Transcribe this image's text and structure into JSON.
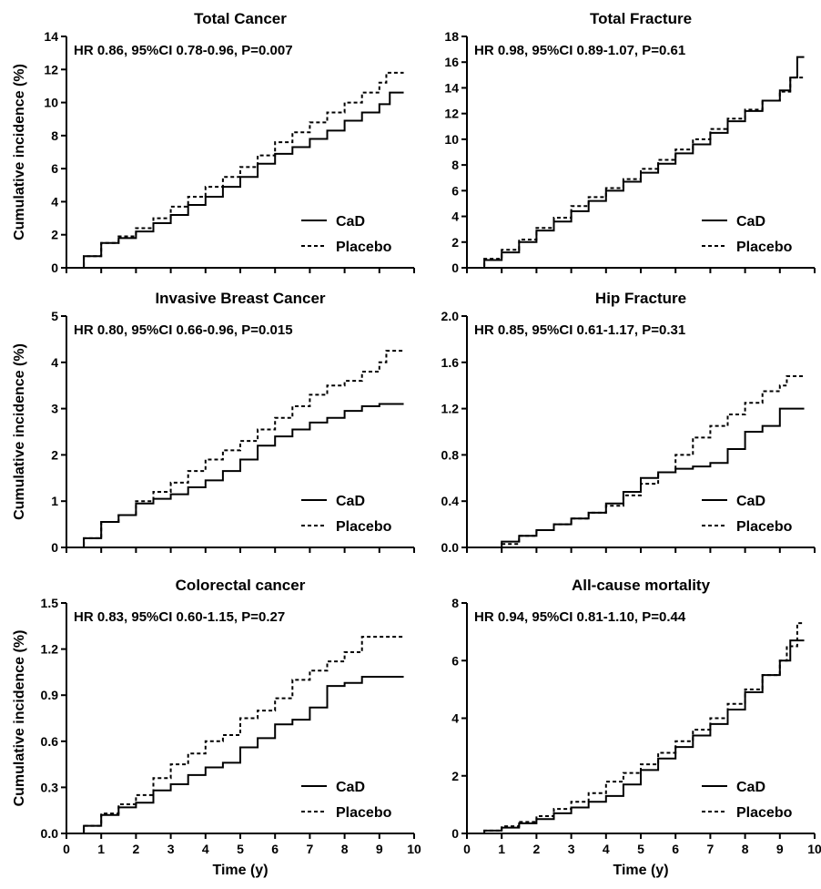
{
  "figure": {
    "xlabel": "Time (y)",
    "ylabel": "Cumulative incidence (%)"
  },
  "legend": {
    "items": [
      {
        "label": "CaD",
        "style": "solid",
        "color": "#000000"
      },
      {
        "label": "Placebo",
        "style": "dashed",
        "color": "#000000"
      }
    ],
    "placement": "bottom-right"
  },
  "chart_data": [
    {
      "type": "line",
      "title": "Total Cancer",
      "annotation": "HR 0.86, 95%CI 0.78-0.96, P=0.007",
      "xlim": [
        0,
        10
      ],
      "ylim": [
        0,
        14
      ],
      "xticks": [
        "0",
        "1",
        "2",
        "3",
        "4",
        "5",
        "6",
        "7",
        "8",
        "9",
        "10"
      ],
      "yticks": [
        "0",
        "2",
        "4",
        "6",
        "8",
        "10",
        "12",
        "14"
      ],
      "x_tick_labels_shown": false,
      "show_xlabel": false,
      "show_ylabel": true,
      "series": [
        {
          "name": "CaD",
          "style": "solid",
          "x": [
            0,
            0.5,
            1,
            1.5,
            2,
            2.5,
            3,
            3.5,
            4,
            4.5,
            5,
            5.5,
            6,
            6.5,
            7,
            7.5,
            8,
            8.5,
            9,
            9.3,
            9.7
          ],
          "y": [
            0,
            0.7,
            1.5,
            1.8,
            2.2,
            2.7,
            3.2,
            3.8,
            4.3,
            4.9,
            5.5,
            6.3,
            6.9,
            7.3,
            7.8,
            8.3,
            8.9,
            9.4,
            9.9,
            10.6,
            10.6
          ]
        },
        {
          "name": "Placebo",
          "style": "dashed",
          "x": [
            0,
            0.5,
            1,
            1.5,
            2,
            2.5,
            3,
            3.5,
            4,
            4.5,
            5,
            5.5,
            6,
            6.5,
            7,
            7.5,
            8,
            8.5,
            9,
            9.2,
            9.7
          ],
          "y": [
            0,
            0.7,
            1.5,
            1.9,
            2.4,
            3.0,
            3.7,
            4.3,
            4.9,
            5.5,
            6.1,
            6.8,
            7.6,
            8.2,
            8.8,
            9.4,
            10.0,
            10.6,
            11.2,
            11.8,
            11.8
          ]
        }
      ]
    },
    {
      "type": "line",
      "title": "Total Fracture",
      "annotation": "HR 0.98, 95%CI 0.89-1.07, P=0.61",
      "xlim": [
        0,
        10
      ],
      "ylim": [
        0,
        18
      ],
      "xticks": [
        "0",
        "1",
        "2",
        "3",
        "4",
        "5",
        "6",
        "7",
        "8",
        "9",
        "10"
      ],
      "yticks": [
        "0",
        "2",
        "4",
        "6",
        "8",
        "10",
        "12",
        "14",
        "16",
        "18"
      ],
      "x_tick_labels_shown": false,
      "show_xlabel": false,
      "show_ylabel": false,
      "series": [
        {
          "name": "CaD",
          "style": "solid",
          "x": [
            0,
            0.5,
            1,
            1.5,
            2,
            2.5,
            3,
            3.5,
            4,
            4.5,
            5,
            5.5,
            6,
            6.5,
            7,
            7.5,
            8,
            8.5,
            9,
            9.3,
            9.5,
            9.7
          ],
          "y": [
            0,
            0.6,
            1.2,
            2.0,
            2.9,
            3.6,
            4.4,
            5.2,
            6.0,
            6.7,
            7.4,
            8.1,
            8.9,
            9.6,
            10.5,
            11.4,
            12.2,
            13.0,
            13.8,
            14.8,
            16.4,
            16.4
          ]
        },
        {
          "name": "Placebo",
          "style": "dashed",
          "x": [
            0,
            0.5,
            1,
            1.5,
            2,
            2.5,
            3,
            3.5,
            4,
            4.5,
            5,
            5.5,
            6,
            6.5,
            7,
            7.5,
            8,
            8.5,
            9,
            9.3,
            9.7
          ],
          "y": [
            0,
            0.7,
            1.4,
            2.2,
            3.1,
            3.9,
            4.8,
            5.5,
            6.2,
            6.9,
            7.7,
            8.4,
            9.2,
            10.0,
            10.8,
            11.6,
            12.3,
            13.0,
            13.7,
            14.8,
            14.9
          ]
        }
      ]
    },
    {
      "type": "line",
      "title": "Invasive Breast Cancer",
      "annotation": "HR 0.80, 95%CI 0.66-0.96, P=0.015",
      "xlim": [
        0,
        10
      ],
      "ylim": [
        0,
        5
      ],
      "xticks": [
        "0",
        "1",
        "2",
        "3",
        "4",
        "5",
        "6",
        "7",
        "8",
        "9",
        "10"
      ],
      "yticks": [
        "0",
        "1",
        "2",
        "3",
        "4",
        "5"
      ],
      "x_tick_labels_shown": false,
      "show_xlabel": false,
      "show_ylabel": true,
      "series": [
        {
          "name": "CaD",
          "style": "solid",
          "x": [
            0,
            0.5,
            1,
            1.5,
            2,
            2.5,
            3,
            3.5,
            4,
            4.5,
            5,
            5.5,
            6,
            6.5,
            7,
            7.5,
            8,
            8.5,
            9,
            9.7
          ],
          "y": [
            0,
            0.2,
            0.55,
            0.7,
            0.95,
            1.05,
            1.15,
            1.3,
            1.45,
            1.65,
            1.9,
            2.2,
            2.4,
            2.55,
            2.7,
            2.8,
            2.95,
            3.05,
            3.1,
            3.1
          ]
        },
        {
          "name": "Placebo",
          "style": "dashed",
          "x": [
            0,
            0.5,
            1,
            1.5,
            2,
            2.5,
            3,
            3.5,
            4,
            4.5,
            5,
            5.5,
            6,
            6.5,
            7,
            7.5,
            8,
            8.5,
            9,
            9.2,
            9.7
          ],
          "y": [
            0,
            0.2,
            0.55,
            0.7,
            1.0,
            1.2,
            1.4,
            1.65,
            1.9,
            2.1,
            2.3,
            2.55,
            2.8,
            3.05,
            3.3,
            3.5,
            3.6,
            3.8,
            4.0,
            4.25,
            4.25
          ]
        }
      ]
    },
    {
      "type": "line",
      "title": "Hip Fracture",
      "annotation": "HR 0.85, 95%CI 0.61-1.17, P=0.31",
      "xlim": [
        0,
        10
      ],
      "ylim": [
        0,
        2.0
      ],
      "xticks": [
        "0",
        "1",
        "2",
        "3",
        "4",
        "5",
        "6",
        "7",
        "8",
        "9",
        "10"
      ],
      "yticks": [
        "0.0",
        "0.4",
        "0.8",
        "1.2",
        "1.6",
        "2.0"
      ],
      "x_tick_labels_shown": false,
      "show_xlabel": false,
      "show_ylabel": false,
      "series": [
        {
          "name": "CaD",
          "style": "solid",
          "x": [
            0,
            0.5,
            1,
            1.5,
            2,
            2.5,
            3,
            3.5,
            4,
            4.5,
            5,
            5.5,
            6,
            6.5,
            7,
            7.5,
            8,
            8.5,
            9,
            9.7
          ],
          "y": [
            0,
            0,
            0.05,
            0.1,
            0.15,
            0.2,
            0.25,
            0.3,
            0.38,
            0.48,
            0.6,
            0.65,
            0.68,
            0.7,
            0.73,
            0.85,
            1.0,
            1.05,
            1.2,
            1.2
          ]
        },
        {
          "name": "Placebo",
          "style": "dashed",
          "x": [
            0,
            0.5,
            1,
            1.5,
            2,
            2.5,
            3,
            3.5,
            4,
            4.5,
            5,
            5.5,
            6,
            6.5,
            7,
            7.5,
            8,
            8.5,
            9,
            9.2,
            9.7
          ],
          "y": [
            0,
            0,
            0.03,
            0.1,
            0.15,
            0.2,
            0.25,
            0.3,
            0.36,
            0.45,
            0.55,
            0.65,
            0.8,
            0.95,
            1.05,
            1.15,
            1.25,
            1.35,
            1.4,
            1.48,
            1.48
          ]
        }
      ]
    },
    {
      "type": "line",
      "title": "Colorectal cancer",
      "annotation": "HR 0.83, 95%CI 0.60-1.15, P=0.27",
      "xlim": [
        0,
        10
      ],
      "ylim": [
        0,
        1.5
      ],
      "xticks": [
        "0",
        "1",
        "2",
        "3",
        "4",
        "5",
        "6",
        "7",
        "8",
        "9",
        "10"
      ],
      "yticks": [
        "0.0",
        "0.3",
        "0.6",
        "0.9",
        "1.2",
        "1.5"
      ],
      "x_tick_labels_shown": true,
      "show_xlabel": true,
      "show_ylabel": true,
      "series": [
        {
          "name": "CaD",
          "style": "solid",
          "x": [
            0,
            0.5,
            1,
            1.5,
            2,
            2.5,
            3,
            3.5,
            4,
            4.5,
            5,
            5.5,
            6,
            6.5,
            7,
            7.5,
            8,
            8.5,
            9,
            9.7
          ],
          "y": [
            0,
            0.05,
            0.12,
            0.17,
            0.2,
            0.28,
            0.32,
            0.38,
            0.43,
            0.46,
            0.56,
            0.62,
            0.71,
            0.74,
            0.82,
            0.96,
            0.98,
            1.02,
            1.02,
            1.02
          ]
        },
        {
          "name": "Placebo",
          "style": "dashed",
          "x": [
            0,
            0.5,
            1,
            1.5,
            2,
            2.5,
            3,
            3.5,
            4,
            4.5,
            5,
            5.5,
            6,
            6.5,
            7,
            7.5,
            8,
            8.5,
            9,
            9.7
          ],
          "y": [
            0,
            0.05,
            0.13,
            0.19,
            0.25,
            0.36,
            0.45,
            0.52,
            0.6,
            0.64,
            0.75,
            0.8,
            0.88,
            1.0,
            1.06,
            1.12,
            1.18,
            1.28,
            1.28,
            1.28
          ]
        }
      ]
    },
    {
      "type": "line",
      "title": "All-cause mortality",
      "annotation": "HR 0.94, 95%CI 0.81-1.10, P=0.44",
      "xlim": [
        0,
        10
      ],
      "ylim": [
        0,
        8
      ],
      "xticks": [
        "0",
        "1",
        "2",
        "3",
        "4",
        "5",
        "6",
        "7",
        "8",
        "9",
        "10"
      ],
      "yticks": [
        "0",
        "2",
        "4",
        "6",
        "8"
      ],
      "x_tick_labels_shown": true,
      "show_xlabel": true,
      "show_ylabel": false,
      "series": [
        {
          "name": "CaD",
          "style": "solid",
          "x": [
            0,
            0.5,
            1,
            1.5,
            2,
            2.5,
            3,
            3.5,
            4,
            4.5,
            5,
            5.5,
            6,
            6.5,
            7,
            7.5,
            8,
            8.5,
            9,
            9.3,
            9.7
          ],
          "y": [
            0,
            0.1,
            0.2,
            0.35,
            0.5,
            0.7,
            0.9,
            1.1,
            1.3,
            1.7,
            2.2,
            2.6,
            3.0,
            3.4,
            3.8,
            4.3,
            4.9,
            5.5,
            6.0,
            6.7,
            6.7
          ]
        },
        {
          "name": "Placebo",
          "style": "dashed",
          "x": [
            0,
            0.5,
            1,
            1.5,
            2,
            2.5,
            3,
            3.5,
            4,
            4.5,
            5,
            5.5,
            6,
            6.5,
            7,
            7.5,
            8,
            8.5,
            9,
            9.2,
            9.5,
            9.7
          ],
          "y": [
            0,
            0.1,
            0.25,
            0.4,
            0.6,
            0.85,
            1.1,
            1.4,
            1.8,
            2.1,
            2.4,
            2.8,
            3.2,
            3.6,
            4.0,
            4.5,
            5.0,
            5.5,
            6.0,
            6.5,
            7.3,
            7.3
          ]
        }
      ]
    }
  ]
}
